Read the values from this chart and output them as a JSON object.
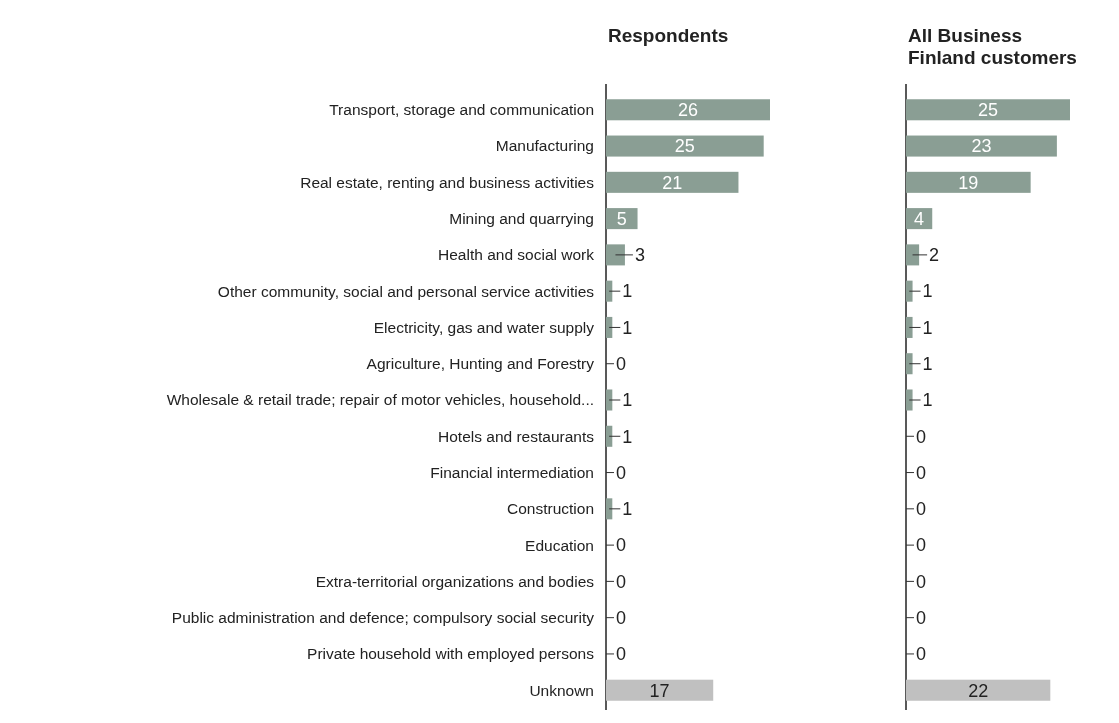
{
  "chart_data": [
    {
      "type": "bar",
      "orientation": "horizontal",
      "title": "Respondents",
      "categories": [
        "Transport, storage and communication",
        "Manufacturing",
        "Real estate, renting and business activities",
        "Mining and quarrying",
        "Health and social work",
        "Other community, social and personal service activities",
        "Electricity, gas and water supply",
        "Agriculture, Hunting and Forestry",
        "Wholesale & retail trade; repair of motor vehicles, household...",
        "Hotels and restaurants",
        "Financial intermediation",
        "Construction",
        "Education",
        "Extra-territorial organizations and bodies",
        "Public administration and defence; compulsory social security",
        "Private household with employed persons",
        "Unknown"
      ],
      "values": [
        26,
        25,
        21,
        5,
        3,
        1,
        1,
        0,
        1,
        1,
        0,
        1,
        0,
        0,
        0,
        0,
        17
      ],
      "colors": [
        "#8a9e94",
        "#8a9e94",
        "#8a9e94",
        "#8a9e94",
        "#8a9e94",
        "#8a9e94",
        "#8a9e94",
        "#8a9e94",
        "#8a9e94",
        "#8a9e94",
        "#8a9e94",
        "#8a9e94",
        "#8a9e94",
        "#8a9e94",
        "#8a9e94",
        "#8a9e94",
        "#c0c0c0"
      ],
      "data_labels": true
    },
    {
      "type": "bar",
      "orientation": "horizontal",
      "title": "All Business Finland customers",
      "categories": [
        null,
        null,
        null,
        null,
        null,
        null,
        null,
        null,
        null,
        null,
        null,
        null,
        null,
        null,
        null,
        null,
        null
      ],
      "values": [
        25,
        23,
        19,
        4,
        2,
        1,
        1,
        1,
        1,
        0,
        0,
        0,
        0,
        0,
        0,
        0,
        22
      ],
      "colors": [
        "#8a9e94",
        "#8a9e94",
        "#8a9e94",
        "#8a9e94",
        "#8a9e94",
        "#8a9e94",
        "#8a9e94",
        "#8a9e94",
        "#8a9e94",
        "#8a9e94",
        "#8a9e94",
        "#8a9e94",
        "#8a9e94",
        "#8a9e94",
        "#8a9e94",
        "#8a9e94",
        "#c0c0c0"
      ],
      "data_labels": true
    }
  ]
}
